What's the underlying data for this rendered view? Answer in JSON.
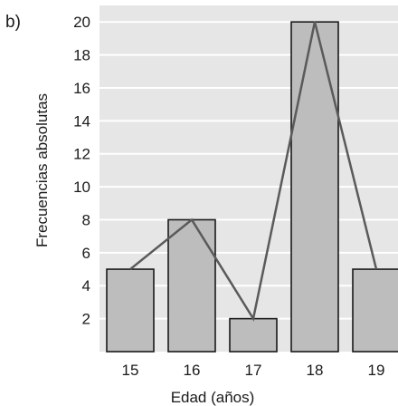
{
  "panel_label": "b)",
  "chart_data": {
    "type": "bar",
    "categories": [
      "15",
      "16",
      "17",
      "18",
      "19"
    ],
    "values": [
      5,
      8,
      2,
      20,
      5
    ],
    "overlay": "frequency-polygon",
    "xlabel": "Edad (años)",
    "ylabel": "Frecuencias absolutas",
    "ylim": [
      0,
      21
    ],
    "yticks": [
      2,
      4,
      6,
      8,
      10,
      12,
      14,
      16,
      18,
      20
    ],
    "grid": true,
    "colors": {
      "plot_background": "#e6e6e6",
      "bar_fill": "#bdbdbd",
      "bar_stroke": "#1a1a1a",
      "polygon": "#5a5a5a",
      "grid": "#ffffff"
    }
  }
}
